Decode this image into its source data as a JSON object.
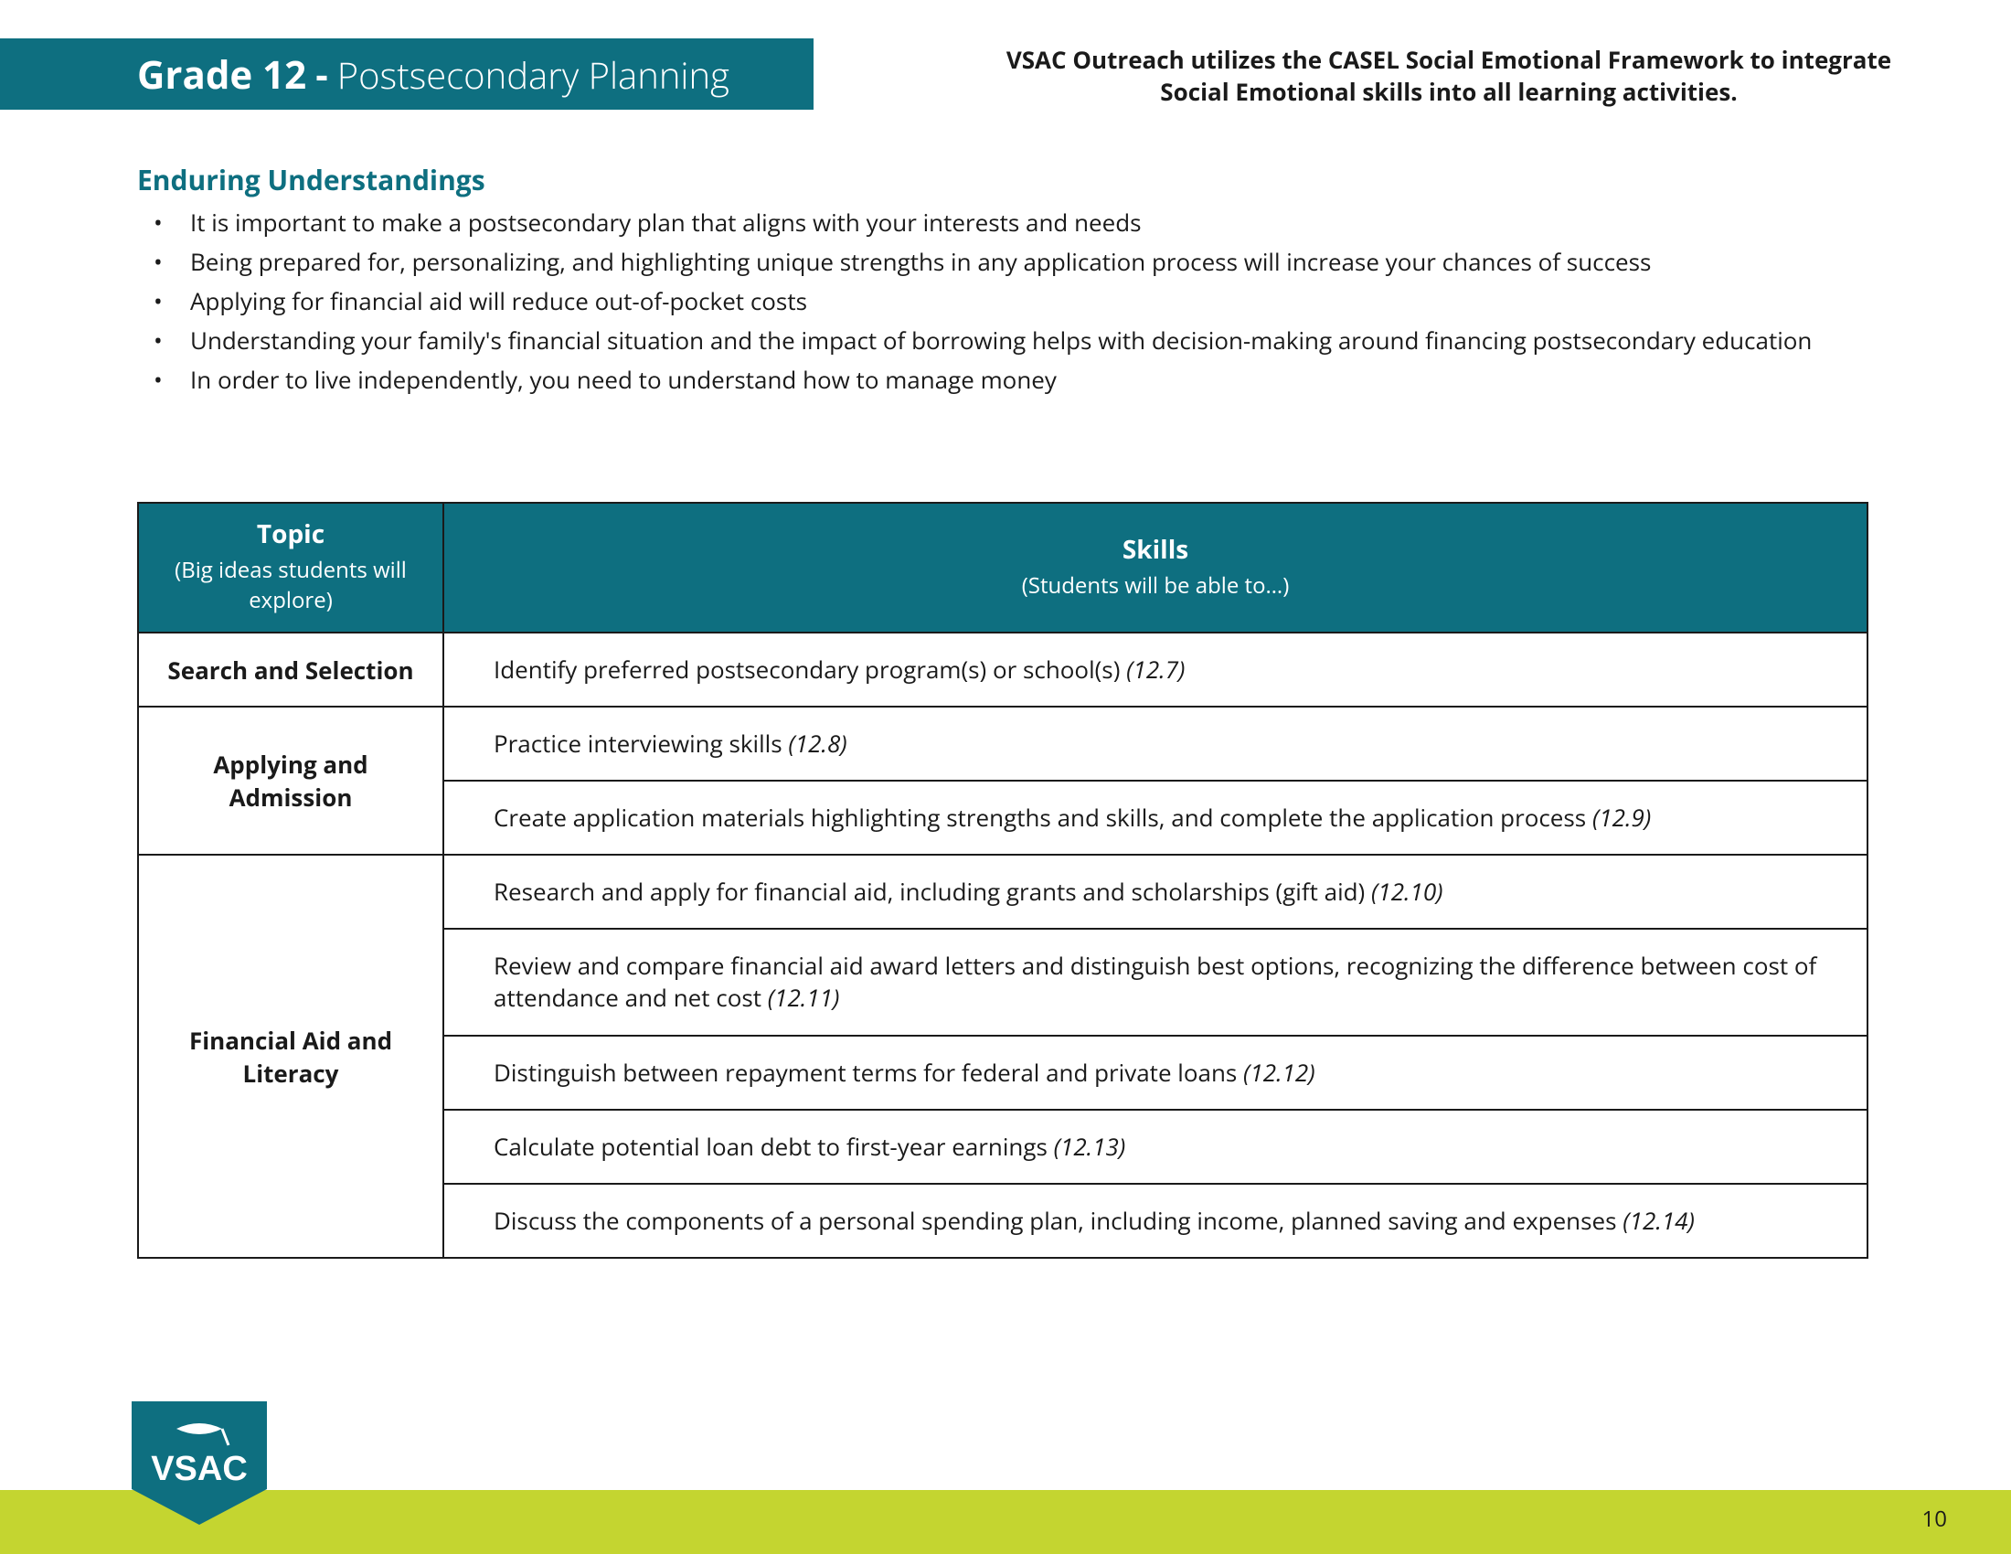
{
  "colors": {
    "teal": "#0e6f80",
    "teal_dark": "#0b5f6e",
    "lime": "#c4d530",
    "text": "#1a1a1a",
    "white": "#ffffff",
    "section_title": "#0e6f80"
  },
  "header": {
    "grade_label": "Grade 12",
    "dash": " - ",
    "subtitle": "Postsecondary Planning",
    "bar_bg": "#0e6f80"
  },
  "blurb": "VSAC Outreach utilizes the CASEL Social Emotional Framework to integrate Social Emotional skills into all learning activities.",
  "section_title": "Enduring Understandings",
  "bullets": [
    "It is important to make a postsecondary plan that aligns with your interests and needs",
    "Being prepared for, personalizing, and highlighting unique strengths in any application process will increase your chances of success",
    "Applying for financial aid will reduce out-of-pocket costs",
    "Understanding your family's financial situation and the impact of borrowing helps with decision-making around financing postsecondary education",
    "In order to live independently, you need to understand how to manage money"
  ],
  "table": {
    "header_bg": "#0e6f80",
    "columns": {
      "topic": {
        "title": "Topic",
        "sub": "(Big ideas students will explore)"
      },
      "skills": {
        "title": "Skills",
        "sub": "(Students will be able to…)"
      }
    },
    "rows": [
      {
        "topic": "Search and Selection",
        "skills": [
          {
            "text": "Identify preferred postsecondary program(s) or school(s) ",
            "code": "(12.7)"
          }
        ]
      },
      {
        "topic": "Applying and Admission",
        "skills": [
          {
            "text": "Practice interviewing skills ",
            "code": "(12.8)"
          },
          {
            "text": "Create application materials highlighting strengths and skills, and complete the application process ",
            "code": "(12.9)"
          }
        ]
      },
      {
        "topic": "Financial Aid and Literacy",
        "skills": [
          {
            "text": "Research and apply for financial aid, including grants and scholarships (gift aid) ",
            "code": "(12.10)"
          },
          {
            "text": "Review and compare financial aid award letters and distinguish best options, recognizing the difference between cost of attendance and net cost ",
            "code": "(12.11)"
          },
          {
            "text": "Distinguish between repayment terms for federal and private loans ",
            "code": "(12.12)"
          },
          {
            "text": "Calculate potential loan debt to first-year earnings ",
            "code": "(12.13)"
          },
          {
            "text": "Discuss the components of a personal spending plan, including income, planned saving and expenses ",
            "code": "(12.14)"
          }
        ]
      }
    ]
  },
  "footer": {
    "band_color": "#c4d530",
    "page_number": "10",
    "logo_text": "VSAC",
    "logo_bg": "#0e6f80",
    "logo_text_color": "#ffffff"
  }
}
